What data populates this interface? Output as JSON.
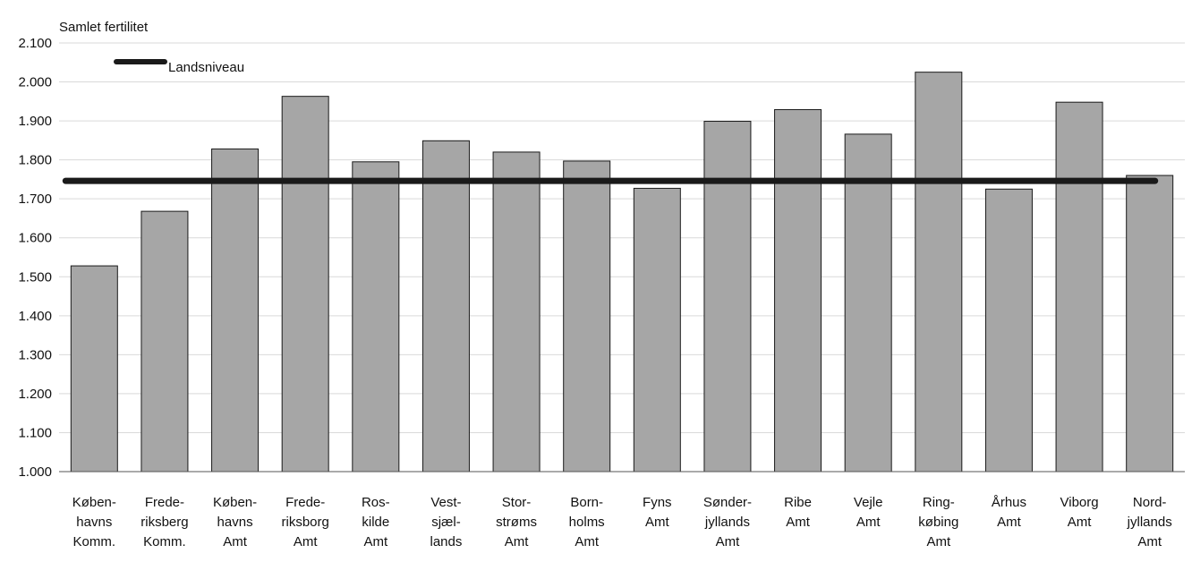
{
  "chart_data": {
    "type": "bar",
    "ylabel": "Samlet fertilitet",
    "ylim": [
      1000,
      2100
    ],
    "yticks": [
      1000,
      1100,
      1200,
      1300,
      1400,
      1500,
      1600,
      1700,
      1800,
      1900,
      2000,
      2100
    ],
    "ytick_labels": [
      "1.000",
      "1.100",
      "1.200",
      "1.300",
      "1.400",
      "1.500",
      "1.600",
      "1.700",
      "1.800",
      "1.900",
      "2.000",
      "2.100"
    ],
    "categories": [
      [
        "Køben-",
        "havns",
        "Komm."
      ],
      [
        "Frede-",
        "riksberg",
        "Komm."
      ],
      [
        "Køben-",
        "havns",
        "Amt"
      ],
      [
        "Frede-",
        "riksborg",
        "Amt"
      ],
      [
        "Ros-",
        "kilde",
        "Amt"
      ],
      [
        "Vest-",
        "sjæl-",
        "lands"
      ],
      [
        "Stor-",
        "strøms",
        "Amt"
      ],
      [
        "Born-",
        "holms",
        "Amt"
      ],
      [
        "Fyns",
        "Amt"
      ],
      [
        "Sønder-",
        "jyllands",
        "Amt"
      ],
      [
        "Ribe",
        "Amt"
      ],
      [
        "Vejle",
        "Amt"
      ],
      [
        "Ring-",
        "købing",
        "Amt"
      ],
      [
        "Århus",
        "Amt"
      ],
      [
        "Viborg",
        "Amt"
      ],
      [
        "Nord-",
        "jyllands",
        "Amt"
      ]
    ],
    "values": [
      1528,
      1668,
      1828,
      1963,
      1795,
      1849,
      1820,
      1797,
      1727,
      1899,
      1929,
      1866,
      2025,
      1725,
      1948,
      1760
    ],
    "reference_line": {
      "name": "Landsniveau",
      "value": 1746
    },
    "legend_position": "top-left",
    "grid": true,
    "colors": {
      "bar": "#a6a6a6",
      "bar_edge": "#1a1a1a",
      "line": "#1a1a1a",
      "grid": "#d9d9d9"
    }
  }
}
